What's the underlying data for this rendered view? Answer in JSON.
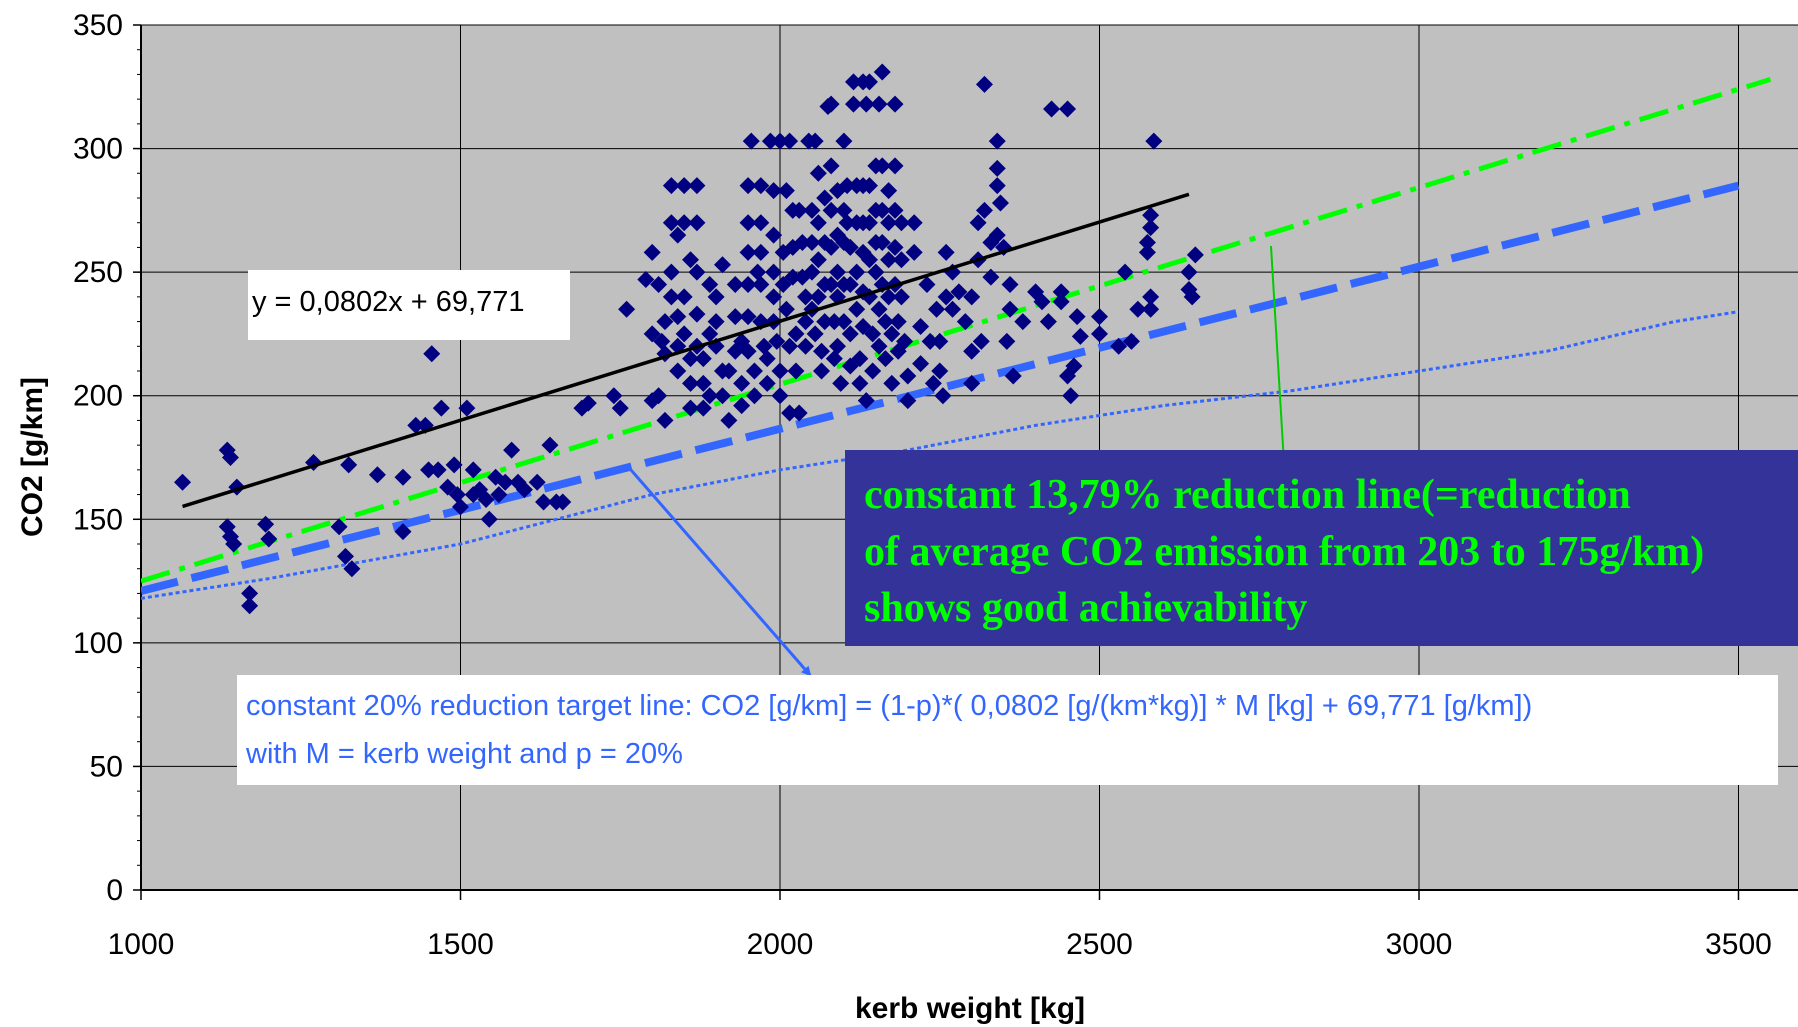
{
  "chart_data": {
    "type": "scatter",
    "xlabel": "kerb weight [kg]",
    "ylabel": "CO2 [g/km]",
    "xlim": [
      1000,
      3500
    ],
    "ylim": [
      0,
      350
    ],
    "x_ticks": [
      "1000",
      "1500",
      "2000",
      "2500",
      "3000",
      "3500"
    ],
    "y_ticks": [
      "0",
      "50",
      "100",
      "150",
      "200",
      "250",
      "300",
      "350"
    ],
    "grid": true,
    "colors": {
      "plot_bg": "#c0c0c0",
      "markers": "#000080",
      "trend": "#000000",
      "green_line": "#00ff00",
      "blue_line": "#3366ff",
      "dotted_line": "#3366ff",
      "callout_bg": "#333399",
      "callout_text": "#00ff00",
      "note_text": "#3366ff"
    },
    "trendline": {
      "equation_label": "y = 0,0802x + 69,771",
      "slope": 0.0802,
      "intercept": 69.771,
      "x_range": [
        1065,
        2640
      ]
    },
    "lines": [
      {
        "style": "dash-dot",
        "color": "green",
        "points": [
          [
            1000,
            125
          ],
          [
            3550,
            328
          ]
        ]
      },
      {
        "style": "long-dash",
        "color": "blue",
        "points": [
          [
            1000,
            121
          ],
          [
            3500,
            285
          ]
        ]
      },
      {
        "style": "dotted-step",
        "color": "blue",
        "points": [
          [
            1000,
            118
          ],
          [
            1200,
            126
          ],
          [
            1500,
            140
          ],
          [
            1800,
            160
          ],
          [
            2000,
            170
          ],
          [
            2200,
            178
          ],
          [
            2400,
            188
          ],
          [
            2600,
            196
          ],
          [
            2800,
            202
          ],
          [
            3000,
            210
          ],
          [
            3200,
            218
          ],
          [
            3400,
            230
          ],
          [
            3500,
            234
          ]
        ]
      }
    ],
    "points": [
      [
        1065,
        165
      ],
      [
        1135,
        178
      ],
      [
        1140,
        175
      ],
      [
        1150,
        163
      ],
      [
        1135,
        147
      ],
      [
        1140,
        143
      ],
      [
        1145,
        140
      ],
      [
        1170,
        120
      ],
      [
        1170,
        115
      ],
      [
        1195,
        148
      ],
      [
        1200,
        142
      ],
      [
        1270,
        173
      ],
      [
        1310,
        147
      ],
      [
        1320,
        135
      ],
      [
        1330,
        130
      ],
      [
        1325,
        172
      ],
      [
        1370,
        168
      ],
      [
        1410,
        167
      ],
      [
        1410,
        145
      ],
      [
        1430,
        188
      ],
      [
        1445,
        188
      ],
      [
        1455,
        217
      ],
      [
        1450,
        170
      ],
      [
        1465,
        170
      ],
      [
        1470,
        195
      ],
      [
        1480,
        163
      ],
      [
        1490,
        172
      ],
      [
        1495,
        160
      ],
      [
        1500,
        155
      ],
      [
        1510,
        195
      ],
      [
        1520,
        170
      ],
      [
        1520,
        160
      ],
      [
        1530,
        162
      ],
      [
        1540,
        158
      ],
      [
        1545,
        150
      ],
      [
        1555,
        167
      ],
      [
        1560,
        160
      ],
      [
        1570,
        165
      ],
      [
        1580,
        178
      ],
      [
        1590,
        165
      ],
      [
        1600,
        162
      ],
      [
        1620,
        165
      ],
      [
        1630,
        157
      ],
      [
        1640,
        180
      ],
      [
        1650,
        157
      ],
      [
        1660,
        157
      ],
      [
        1690,
        195
      ],
      [
        1700,
        197
      ],
      [
        1740,
        200
      ],
      [
        1750,
        195
      ],
      [
        1760,
        235
      ],
      [
        1790,
        247
      ],
      [
        1800,
        258
      ],
      [
        1800,
        225
      ],
      [
        1800,
        198
      ],
      [
        1810,
        245
      ],
      [
        1810,
        200
      ],
      [
        1815,
        222
      ],
      [
        1820,
        230
      ],
      [
        1820,
        217
      ],
      [
        1820,
        190
      ],
      [
        1830,
        285
      ],
      [
        1830,
        270
      ],
      [
        1830,
        250
      ],
      [
        1830,
        240
      ],
      [
        1840,
        265
      ],
      [
        1840,
        232
      ],
      [
        1840,
        220
      ],
      [
        1840,
        210
      ],
      [
        1850,
        285
      ],
      [
        1850,
        270
      ],
      [
        1850,
        240
      ],
      [
        1850,
        225
      ],
      [
        1860,
        255
      ],
      [
        1860,
        215
      ],
      [
        1860,
        205
      ],
      [
        1860,
        195
      ],
      [
        1870,
        285
      ],
      [
        1870,
        270
      ],
      [
        1870,
        250
      ],
      [
        1870,
        233
      ],
      [
        1870,
        220
      ],
      [
        1880,
        215
      ],
      [
        1880,
        205
      ],
      [
        1880,
        195
      ],
      [
        1890,
        245
      ],
      [
        1890,
        225
      ],
      [
        1890,
        200
      ],
      [
        1900,
        240
      ],
      [
        1900,
        230
      ],
      [
        1900,
        220
      ],
      [
        1910,
        253
      ],
      [
        1910,
        210
      ],
      [
        1910,
        200
      ],
      [
        1920,
        190
      ],
      [
        1920,
        210
      ],
      [
        1930,
        245
      ],
      [
        1930,
        232
      ],
      [
        1930,
        218
      ],
      [
        1940,
        222
      ],
      [
        1940,
        205
      ],
      [
        1940,
        196
      ],
      [
        1950,
        285
      ],
      [
        1950,
        270
      ],
      [
        1950,
        258
      ],
      [
        1950,
        245
      ],
      [
        1950,
        232
      ],
      [
        1950,
        218
      ],
      [
        1955,
        303
      ],
      [
        1960,
        210
      ],
      [
        1960,
        200
      ],
      [
        1965,
        250
      ],
      [
        1970,
        285
      ],
      [
        1970,
        270
      ],
      [
        1970,
        258
      ],
      [
        1970,
        245
      ],
      [
        1970,
        230
      ],
      [
        1975,
        220
      ],
      [
        1980,
        215
      ],
      [
        1980,
        205
      ],
      [
        1985,
        303
      ],
      [
        1990,
        283
      ],
      [
        1990,
        265
      ],
      [
        1990,
        250
      ],
      [
        1990,
        240
      ],
      [
        1990,
        230
      ],
      [
        1995,
        222
      ],
      [
        2000,
        303
      ],
      [
        2000,
        210
      ],
      [
        2000,
        200
      ],
      [
        2005,
        258
      ],
      [
        2005,
        245
      ],
      [
        2010,
        283
      ],
      [
        2010,
        235
      ],
      [
        2015,
        303
      ],
      [
        2015,
        220
      ],
      [
        2015,
        193
      ],
      [
        2020,
        275
      ],
      [
        2020,
        260
      ],
      [
        2020,
        248
      ],
      [
        2025,
        225
      ],
      [
        2025,
        210
      ],
      [
        2030,
        193
      ],
      [
        2030,
        275
      ],
      [
        2035,
        262
      ],
      [
        2035,
        248
      ],
      [
        2040,
        240
      ],
      [
        2040,
        230
      ],
      [
        2040,
        220
      ],
      [
        2045,
        303
      ],
      [
        2050,
        275
      ],
      [
        2050,
        262
      ],
      [
        2050,
        250
      ],
      [
        2050,
        235
      ],
      [
        2055,
        303
      ],
      [
        2055,
        225
      ],
      [
        2060,
        290
      ],
      [
        2060,
        270
      ],
      [
        2060,
        255
      ],
      [
        2060,
        240
      ],
      [
        2065,
        218
      ],
      [
        2065,
        210
      ],
      [
        2070,
        280
      ],
      [
        2070,
        262
      ],
      [
        2070,
        245
      ],
      [
        2070,
        230
      ],
      [
        2075,
        317
      ],
      [
        2080,
        318
      ],
      [
        2080,
        293
      ],
      [
        2080,
        275
      ],
      [
        2080,
        260
      ],
      [
        2080,
        245
      ],
      [
        2085,
        230
      ],
      [
        2085,
        215
      ],
      [
        2090,
        283
      ],
      [
        2090,
        265
      ],
      [
        2090,
        250
      ],
      [
        2090,
        240
      ],
      [
        2090,
        220
      ],
      [
        2095,
        205
      ],
      [
        2100,
        303
      ],
      [
        2100,
        275
      ],
      [
        2100,
        262
      ],
      [
        2100,
        245
      ],
      [
        2100,
        230
      ],
      [
        2105,
        285
      ],
      [
        2105,
        270
      ],
      [
        2110,
        260
      ],
      [
        2110,
        245
      ],
      [
        2110,
        225
      ],
      [
        2110,
        212
      ],
      [
        2115,
        327
      ],
      [
        2115,
        318
      ],
      [
        2120,
        285
      ],
      [
        2120,
        270
      ],
      [
        2120,
        250
      ],
      [
        2120,
        235
      ],
      [
        2125,
        215
      ],
      [
        2125,
        205
      ],
      [
        2130,
        327
      ],
      [
        2130,
        285
      ],
      [
        2130,
        270
      ],
      [
        2130,
        258
      ],
      [
        2130,
        242
      ],
      [
        2130,
        228
      ],
      [
        2135,
        318
      ],
      [
        2135,
        198
      ],
      [
        2140,
        327
      ],
      [
        2140,
        285
      ],
      [
        2140,
        270
      ],
      [
        2140,
        255
      ],
      [
        2140,
        240
      ],
      [
        2145,
        225
      ],
      [
        2145,
        210
      ],
      [
        2150,
        293
      ],
      [
        2150,
        275
      ],
      [
        2150,
        262
      ],
      [
        2150,
        250
      ],
      [
        2155,
        318
      ],
      [
        2155,
        235
      ],
      [
        2155,
        220
      ],
      [
        2160,
        331
      ],
      [
        2160,
        293
      ],
      [
        2160,
        275
      ],
      [
        2160,
        262
      ],
      [
        2160,
        245
      ],
      [
        2165,
        230
      ],
      [
        2165,
        215
      ],
      [
        2170,
        283
      ],
      [
        2170,
        270
      ],
      [
        2170,
        255
      ],
      [
        2170,
        240
      ],
      [
        2175,
        225
      ],
      [
        2175,
        205
      ],
      [
        2180,
        318
      ],
      [
        2180,
        293
      ],
      [
        2180,
        275
      ],
      [
        2180,
        260
      ],
      [
        2180,
        245
      ],
      [
        2185,
        230
      ],
      [
        2185,
        218
      ],
      [
        2190,
        270
      ],
      [
        2190,
        255
      ],
      [
        2190,
        240
      ],
      [
        2195,
        222
      ],
      [
        2200,
        208
      ],
      [
        2200,
        198
      ],
      [
        2210,
        270
      ],
      [
        2210,
        258
      ],
      [
        2220,
        228
      ],
      [
        2220,
        213
      ],
      [
        2230,
        245
      ],
      [
        2235,
        222
      ],
      [
        2240,
        205
      ],
      [
        2245,
        235
      ],
      [
        2250,
        222
      ],
      [
        2250,
        210
      ],
      [
        2255,
        200
      ],
      [
        2260,
        258
      ],
      [
        2260,
        240
      ],
      [
        2270,
        235
      ],
      [
        2270,
        250
      ],
      [
        2280,
        242
      ],
      [
        2290,
        230
      ],
      [
        2300,
        240
      ],
      [
        2300,
        218
      ],
      [
        2300,
        205
      ],
      [
        2310,
        270
      ],
      [
        2310,
        255
      ],
      [
        2315,
        222
      ],
      [
        2320,
        326
      ],
      [
        2320,
        275
      ],
      [
        2330,
        262
      ],
      [
        2330,
        248
      ],
      [
        2340,
        303
      ],
      [
        2340,
        292
      ],
      [
        2340,
        285
      ],
      [
        2340,
        265
      ],
      [
        2345,
        278
      ],
      [
        2350,
        260
      ],
      [
        2355,
        222
      ],
      [
        2360,
        245
      ],
      [
        2360,
        235
      ],
      [
        2365,
        208
      ],
      [
        2380,
        230
      ],
      [
        2400,
        242
      ],
      [
        2410,
        238
      ],
      [
        2420,
        230
      ],
      [
        2425,
        316
      ],
      [
        2440,
        242
      ],
      [
        2440,
        238
      ],
      [
        2450,
        316
      ],
      [
        2450,
        208
      ],
      [
        2455,
        200
      ],
      [
        2460,
        212
      ],
      [
        2465,
        232
      ],
      [
        2470,
        224
      ],
      [
        2500,
        232
      ],
      [
        2500,
        225
      ],
      [
        2530,
        220
      ],
      [
        2540,
        250
      ],
      [
        2550,
        222
      ],
      [
        2560,
        235
      ],
      [
        2575,
        262
      ],
      [
        2575,
        258
      ],
      [
        2580,
        273
      ],
      [
        2580,
        268
      ],
      [
        2580,
        240
      ],
      [
        2580,
        235
      ],
      [
        2585,
        303
      ],
      [
        2640,
        250
      ],
      [
        2640,
        243
      ],
      [
        2645,
        240
      ],
      [
        2650,
        257
      ]
    ],
    "annotations": {
      "callout_lines": [
        "constant 13,79% reduction line(=reduction",
        "of average CO2 emission from 203 to 175g/km)",
        "shows good achievability"
      ],
      "note_lines": [
        "constant 20% reduction target line: CO2 [g/km]  = (1-p)*( 0,0802 [g/(km*kg)] * M [kg] + 69,771 [g/km])",
        "with M = kerb weight and p = 20%"
      ]
    }
  }
}
